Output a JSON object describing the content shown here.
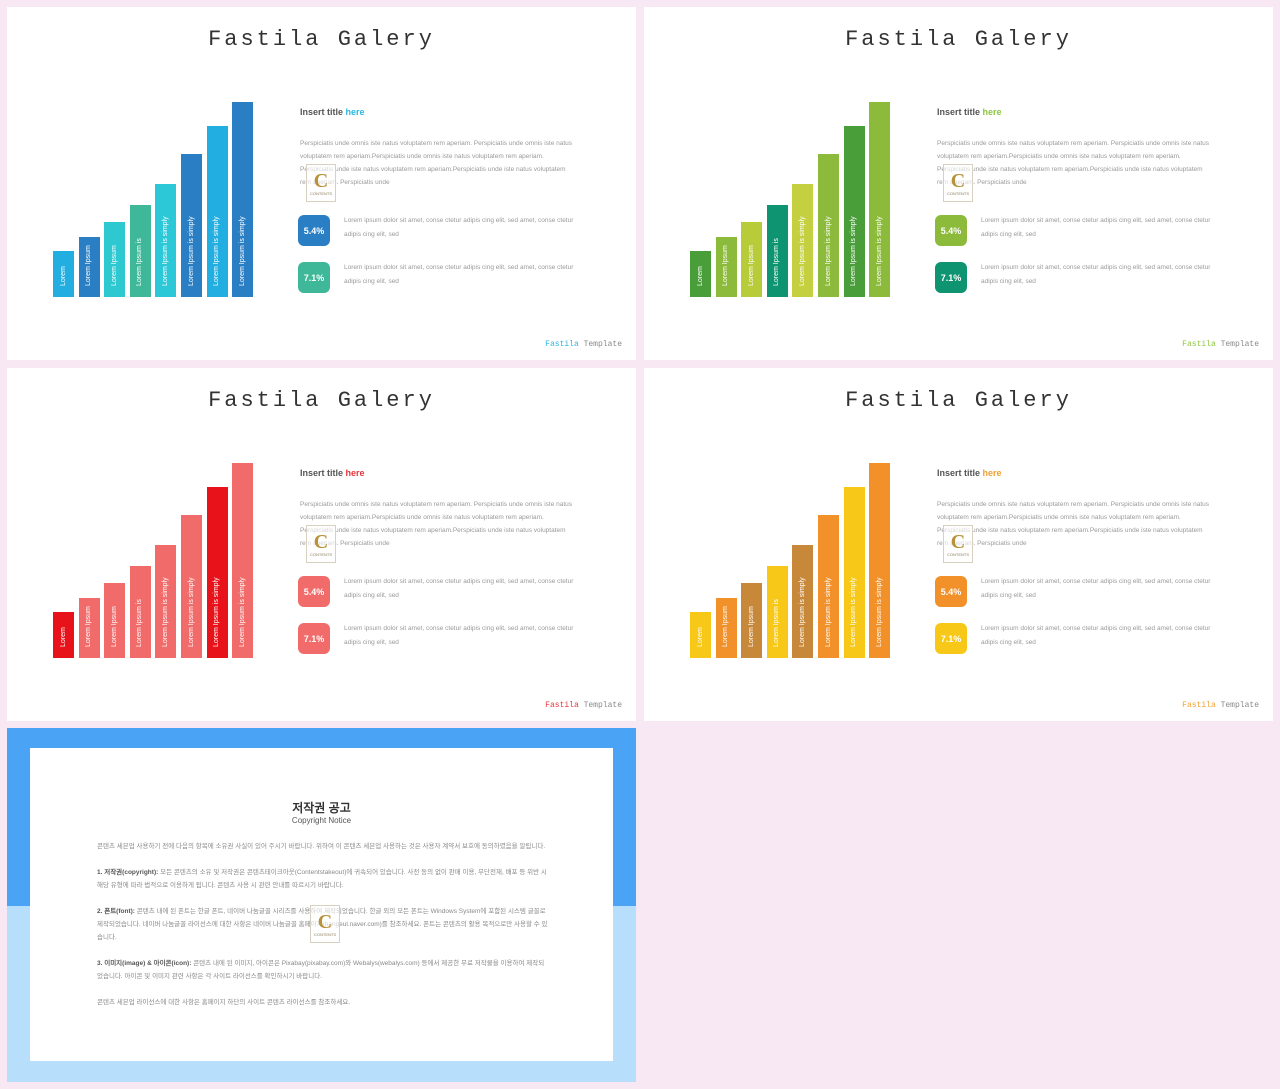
{
  "slides": [
    {
      "title": "Fastila Galery",
      "insert_title_prefix": "Insert title ",
      "insert_title_accent": "here",
      "accent": "#2bb5e0",
      "paragraph": "Perspiciatis unde omnis iste natus voluptatem rem aperiam. Perspiciatis unde omnis iste natus voluptatem rem aperiam.Perspiciatis unde omnis iste natus voluptatem rem aperiam. Perspiciatis unde iste natus voluptatem rem aperiam.Perspiciatis unde iste natus voluptatem rem aperiam. Perspiciatis unde",
      "stats": [
        {
          "value": "5.4%",
          "color": "#2a7fc4",
          "text": "Lorem ipsum dolor sit amet, conse ctetur adipis cing elit, sed amet, conse ctetur adipis cing elit, sed"
        },
        {
          "value": "7.1%",
          "color": "#3fb89a",
          "text": "Lorem ipsum dolor sit amet, conse ctetur adipis cing elit, sed amet, conse ctetur adipis cing elit, sed"
        }
      ],
      "footer_brand": "Fastila",
      "footer_rest": " Template",
      "bar_colors": [
        "#22aee0",
        "#2a7fc4",
        "#2ec8d0",
        "#3fb89a",
        "#2cc8d8",
        "#2a7fc4",
        "#22aee0",
        "#2a7fc4"
      ]
    },
    {
      "title": "Fastila Galery",
      "insert_title_prefix": "Insert title ",
      "insert_title_accent": "here",
      "accent": "#8cc63f",
      "paragraph": "Perspiciatis unde omnis iste natus voluptatem rem aperiam. Perspiciatis unde omnis iste natus voluptatem rem aperiam.Perspiciatis unde omnis iste natus voluptatem rem aperiam. Perspiciatis unde iste natus voluptatem rem aperiam.Perspiciatis unde iste natus voluptatem rem aperiam. Perspiciatis unde",
      "stats": [
        {
          "value": "5.4%",
          "color": "#8cba3a",
          "text": "Lorem ipsum dolor sit amet, conse ctetur adipis cing elit, sed amet, conse ctetur adipis cing elit, sed"
        },
        {
          "value": "7.1%",
          "color": "#0e9470",
          "text": "Lorem ipsum dolor sit amet, conse ctetur adipis cing elit, sed amet, conse ctetur adipis cing elit, sed"
        }
      ],
      "footer_brand": "Fastila",
      "footer_rest": " Template",
      "bar_colors": [
        "#4a9e3a",
        "#8cba3a",
        "#b8cc3a",
        "#0e9470",
        "#c4d040",
        "#8cba3a",
        "#4a9e3a",
        "#8cba3a"
      ]
    },
    {
      "title": "Fastila Galery",
      "insert_title_prefix": "Insert title ",
      "insert_title_accent": "here",
      "accent": "#e8343a",
      "paragraph": "Perspiciatis unde omnis iste natus voluptatem rem aperiam. Perspiciatis unde omnis iste natus voluptatem rem aperiam.Perspiciatis unde omnis iste natus voluptatem rem aperiam. Perspiciatis unde iste natus voluptatem rem aperiam.Perspiciatis unde iste natus voluptatem rem aperiam. Perspiciatis unde",
      "stats": [
        {
          "value": "5.4%",
          "color": "#f26b6b",
          "text": "Lorem ipsum dolor sit amet, conse ctetur adipis cing elit, sed amet, conse ctetur adipis cing elit, sed"
        },
        {
          "value": "7.1%",
          "color": "#f26b6b",
          "text": "Lorem ipsum dolor sit amet, conse ctetur adipis cing elit, sed amet, conse ctetur adipis cing elit, sed"
        }
      ],
      "footer_brand": "Fastila",
      "footer_rest": " Template",
      "bar_colors": [
        "#e8121a",
        "#f26b6b",
        "#f26b6b",
        "#f26b6b",
        "#f26b6b",
        "#f26b6b",
        "#e8121a",
        "#f26b6b"
      ]
    },
    {
      "title": "Fastila Galery",
      "insert_title_prefix": "Insert title ",
      "insert_title_accent": "here",
      "accent": "#f0a030",
      "paragraph": "Perspiciatis unde omnis iste natus voluptatem rem aperiam. Perspiciatis unde omnis iste natus voluptatem rem aperiam.Perspiciatis unde omnis iste natus voluptatem rem aperiam. Perspiciatis unde iste natus voluptatem rem aperiam.Perspiciatis unde iste natus voluptatem rem aperiam. Perspiciatis unde",
      "stats": [
        {
          "value": "5.4%",
          "color": "#f2902a",
          "text": "Lorem ipsum dolor sit amet, conse ctetur adipis cing elit, sed amet, conse ctetur adipis cing elit, sed"
        },
        {
          "value": "7.1%",
          "color": "#f8c818",
          "text": "Lorem ipsum dolor sit amet, conse ctetur adipis cing elit, sed amet, conse ctetur adipis cing elit, sed"
        }
      ],
      "footer_brand": "Fastila",
      "footer_rest": " Template",
      "bar_colors": [
        "#f8c818",
        "#f2902a",
        "#c8883a",
        "#f8c818",
        "#c8883a",
        "#f2902a",
        "#f8c818",
        "#f2902a"
      ]
    }
  ],
  "chart_data": {
    "type": "bar",
    "categories": [
      "Lorem",
      "Lorem Ipsum",
      "Lorem Ipsum",
      "Lorem Ipsum is",
      "Lorem Ipsum is simply",
      "Lorem Ipsum is simply",
      "Lorem Ipsum is simply",
      "Lorem Ipsum is simply"
    ],
    "values": [
      46,
      60,
      75,
      92,
      113,
      143,
      171,
      195
    ]
  },
  "watermark": {
    "letter": "C",
    "text": "CONTENTS"
  },
  "copyright": {
    "title": "저작권 공고",
    "subtitle": "Copyright Notice",
    "intro": "콘텐츠 세븐업 사용하기 전에 다음의 항목에 소유권 사실이 있어 주시기 바랍니다. 위하여 이 콘텐츠 세븐업 사용하는 것은 사용자 계약서 보호에 동의하였음을 알립니다.",
    "sections": [
      {
        "heading": "1. 저작권(copyright):",
        "text": " 모든 콘텐츠의 소유 및 저작권은 콘텐츠테이크아웃(Contentstakeout)에 귀속되어 있습니다. 사전 동의 없이 판매 이용, 무단전재, 배포 등 위반 시 해당 유형에 따라 법적으로 이용하게 됩니다. 콘텐츠 사용 시 관련 안내를 따르시기 바랍니다."
      },
      {
        "heading": "2. 폰트(font):",
        "text": " 콘텐츠 내에 된 폰트는 한글 폰트, 네이버 나눔글꼴 시리즈를 사용하여 제작되었습니다. 한글 외의 모든 폰트는 Windows System에 포함된 시스템 글꼴로 제작되었습니다. 네이버 나눔글꼴 라이선스에 대한 사항은 네이버 나눔글꼴 홈페이지(hangeul.naver.com)를 참조하세요. 폰트는 콘텐츠의 활용 목적으로만 사용할 수 있습니다."
      },
      {
        "heading": "3. 이미지(image) & 아이콘(icon):",
        "text": " 콘텐츠 내에 된 이미지, 아이콘은 Pixabay(pixabay.com)와 Webalys(webalys.com) 등에서 제공한 무료 저작물을 이용하여 제작되었습니다. 아이콘 및 이미지 관련 사항은 각 사이트 라이선스를 확인하시기 바랍니다."
      }
    ],
    "closing": "콘텐츠 세븐업 라이선스에 대한 사항은 홈페이지 하단의 사이트 콘텐츠 라이선스를 참조하세요."
  }
}
